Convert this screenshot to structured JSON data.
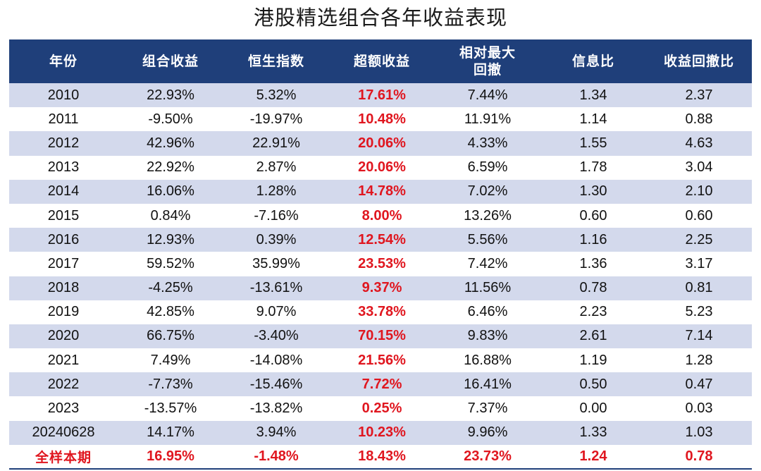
{
  "title": "港股精选组合各年收益表现",
  "table": {
    "headers": [
      "年份",
      "组合收益",
      "恒生指数",
      "超额收益",
      "相对最大回撤",
      "信息比",
      "收益回撤比"
    ],
    "header_lines": {
      "max_drawdown_line1": "相对最大",
      "max_drawdown_line2": "回撤"
    },
    "rows": [
      [
        "2010",
        "22.93%",
        "5.32%",
        "17.61%",
        "7.44%",
        "1.34",
        "2.37"
      ],
      [
        "2011",
        "-9.50%",
        "-19.97%",
        "10.48%",
        "11.91%",
        "1.14",
        "0.88"
      ],
      [
        "2012",
        "42.96%",
        "22.91%",
        "20.06%",
        "4.33%",
        "1.55",
        "4.63"
      ],
      [
        "2013",
        "22.92%",
        "2.87%",
        "20.06%",
        "6.59%",
        "1.78",
        "3.04"
      ],
      [
        "2014",
        "16.06%",
        "1.28%",
        "14.78%",
        "7.02%",
        "1.30",
        "2.10"
      ],
      [
        "2015",
        "0.84%",
        "-7.16%",
        "8.00%",
        "13.26%",
        "0.60",
        "0.60"
      ],
      [
        "2016",
        "12.93%",
        "0.39%",
        "12.54%",
        "5.56%",
        "1.16",
        "2.25"
      ],
      [
        "2017",
        "59.52%",
        "35.99%",
        "23.53%",
        "7.42%",
        "1.36",
        "3.17"
      ],
      [
        "2018",
        "-4.25%",
        "-13.61%",
        "9.37%",
        "11.56%",
        "0.78",
        "0.81"
      ],
      [
        "2019",
        "42.85%",
        "9.07%",
        "33.78%",
        "6.46%",
        "2.23",
        "5.23"
      ],
      [
        "2020",
        "66.75%",
        "-3.40%",
        "70.15%",
        "9.83%",
        "2.61",
        "7.14"
      ],
      [
        "2021",
        "7.49%",
        "-14.08%",
        "21.56%",
        "16.88%",
        "1.19",
        "1.28"
      ],
      [
        "2022",
        "-7.73%",
        "-15.46%",
        "7.72%",
        "16.41%",
        "0.50",
        "0.47"
      ],
      [
        "2023",
        "-13.57%",
        "-13.82%",
        "0.25%",
        "7.37%",
        "0.00",
        "0.03"
      ],
      [
        "20240628",
        "14.17%",
        "3.94%",
        "10.23%",
        "9.96%",
        "1.33",
        "1.03"
      ]
    ],
    "total_row": [
      "全样本期",
      "16.95%",
      "-1.48%",
      "18.43%",
      "23.73%",
      "1.24",
      "0.78"
    ]
  },
  "colors": {
    "header_bg": "#1f3f7a",
    "header_text": "#ffffff",
    "band_row": "#d3d9ec",
    "plain_row": "#ffffff",
    "highlight_red": "#e0161f"
  }
}
